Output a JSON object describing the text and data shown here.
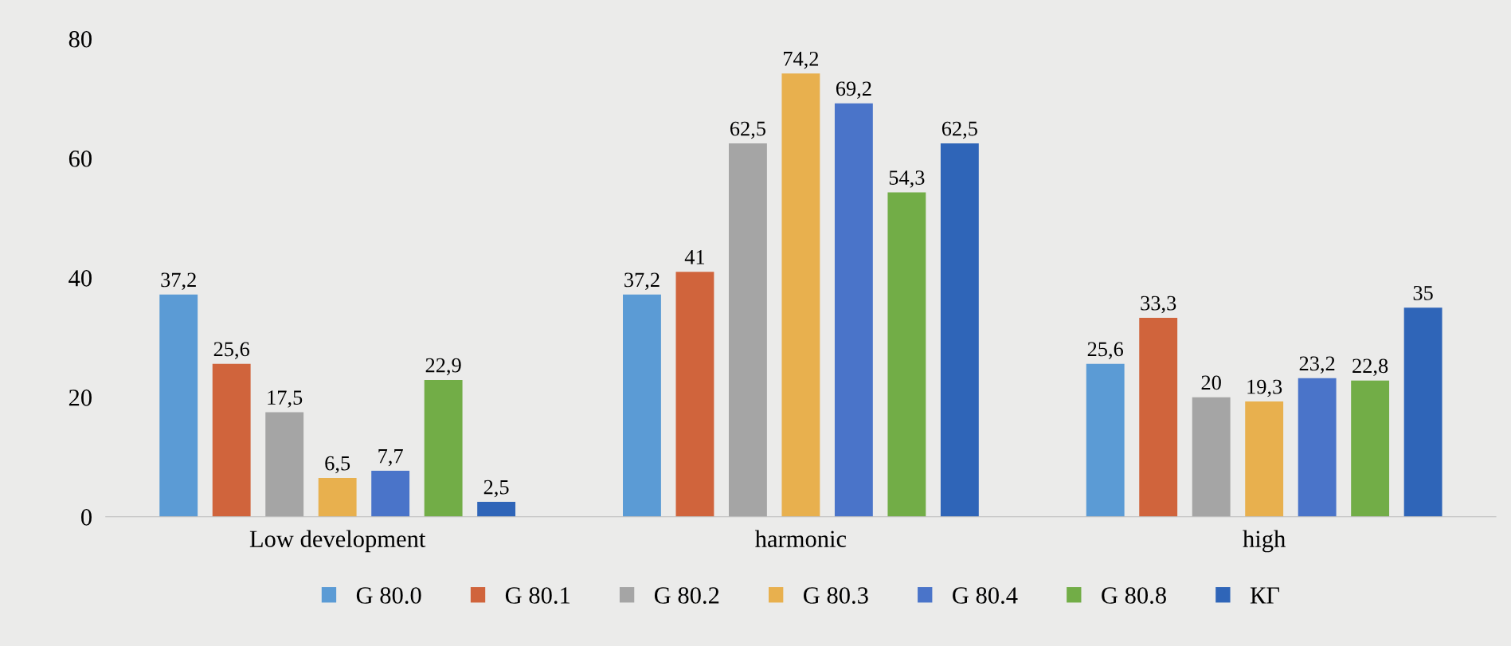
{
  "chart_data": {
    "type": "bar",
    "categories": [
      "Low development",
      "harmonic",
      "high"
    ],
    "series": [
      {
        "name": "G 80.0",
        "color": "#5b9bd5",
        "values": [
          37.2,
          37.2,
          25.6
        ],
        "value_labels": [
          "37,2",
          "37,2",
          "25,6"
        ]
      },
      {
        "name": "G 80.1",
        "color": "#d0643c",
        "values": [
          25.6,
          41,
          33.3
        ],
        "value_labels": [
          "25,6",
          "41",
          "33,3"
        ]
      },
      {
        "name": "G 80.2",
        "color": "#a5a5a5",
        "values": [
          17.5,
          62.5,
          20
        ],
        "value_labels": [
          "17,5",
          "62,5",
          "20"
        ]
      },
      {
        "name": "G 80.3",
        "color": "#e8b04e",
        "values": [
          6.5,
          74.2,
          19.3
        ],
        "value_labels": [
          "6,5",
          "74,2",
          "19,3"
        ]
      },
      {
        "name": "G 80.4",
        "color": "#4a74c9",
        "values": [
          7.7,
          69.2,
          23.2
        ],
        "value_labels": [
          "7,7",
          "69,2",
          "23,2"
        ]
      },
      {
        "name": "G 80.8",
        "color": "#72ad47",
        "values": [
          22.9,
          54.3,
          22.8
        ],
        "value_labels": [
          "22,9",
          "54,3",
          "22,8"
        ]
      },
      {
        "name": "КГ",
        "color": "#2f65b8",
        "values": [
          2.5,
          62.5,
          35
        ],
        "value_labels": [
          "2,5",
          "62,5",
          "35"
        ]
      }
    ],
    "ylim": [
      0,
      80
    ],
    "yticks": [
      0,
      20,
      40,
      60,
      80
    ],
    "grid": false,
    "legend": "bottom"
  }
}
